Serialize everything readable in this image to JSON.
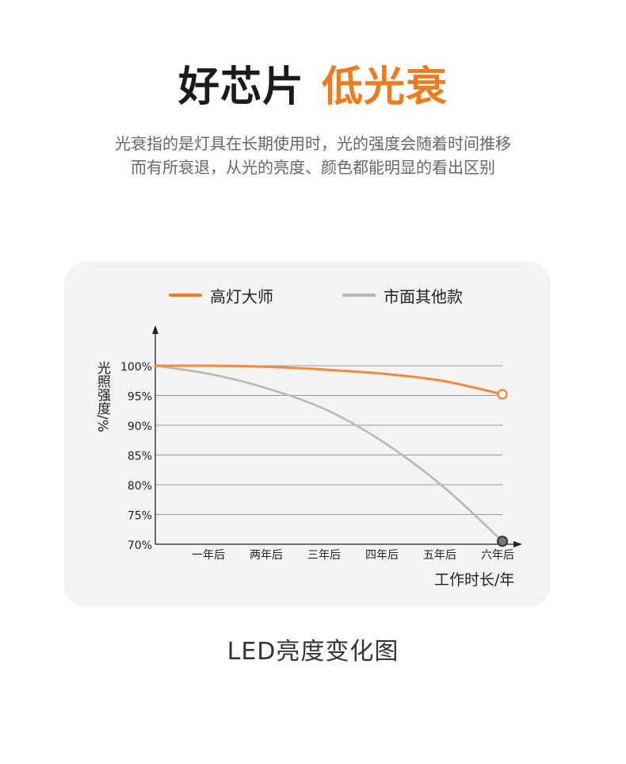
{
  "header": {
    "title_main": "好芯片",
    "title_accent": "低光衰",
    "description_line1": "光衰指的是灯具在长期使用时，光的强度会随着时间推移",
    "description_line2": "而有所衰退，从光的亮度、颜色都能明显的看出区别"
  },
  "colors": {
    "accent": "#f07a1e",
    "orange_series": "#f38a3c",
    "gray_series": "#b8b8b8",
    "panel_bg": "#f3f3f3"
  },
  "chart_data": {
    "type": "line",
    "ylabel": "光照强度/%",
    "xlabel": "工作时长/年",
    "categories": [
      "一年后",
      "两年后",
      "三年后",
      "四年后",
      "五年后",
      "六年后"
    ],
    "yticks": [
      "100%",
      "95%",
      "90%",
      "85%",
      "80%",
      "75%",
      "70%"
    ],
    "ylim": [
      70,
      100
    ],
    "xlim": [
      0,
      6
    ],
    "grid": true,
    "legend_position": "top",
    "series": [
      {
        "name": "高灯大师",
        "color": "#f38a3c",
        "x": [
          0,
          1,
          2,
          3,
          4,
          5,
          6
        ],
        "values": [
          100,
          100,
          99.8,
          99.3,
          98.6,
          97.4,
          95.2
        ]
      },
      {
        "name": "市面其他款",
        "color": "#b8b8b8",
        "x": [
          0,
          1,
          2,
          3,
          4,
          5,
          6
        ],
        "values": [
          100,
          98.5,
          96.0,
          92.4,
          86.8,
          79.5,
          70.5
        ]
      }
    ]
  },
  "caption": "LED亮度变化图"
}
